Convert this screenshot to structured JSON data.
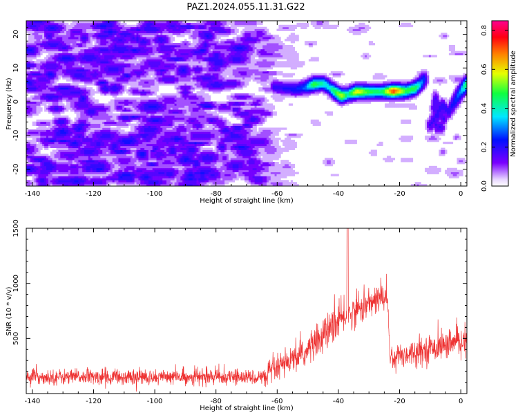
{
  "page": {
    "title": "PAZ1.2024.055.11.31.G22"
  },
  "chart_data": [
    {
      "type": "heatmap",
      "xlabel": "Height of straight line (km)",
      "ylabel": "Frequency (Hz)",
      "xlim": [
        -142,
        2
      ],
      "ylim": [
        -25,
        24
      ],
      "xticks": [
        -140,
        -120,
        -100,
        -80,
        -60,
        -40,
        -20,
        0
      ],
      "yticks": [
        20,
        10,
        0,
        -10,
        -20
      ],
      "grid": false,
      "colorbar": {
        "label": "Normalized spectral amplitude",
        "ticks": [
          0.0,
          0.2,
          0.4,
          0.6,
          0.8
        ],
        "range": [
          0.0,
          0.85
        ],
        "colormap": "gist_rainbow_r (white at 0, violet, blue, cyan, green, yellow, orange, red, magenta at max)"
      },
      "features": {
        "noise_region_x": [
          -142,
          -60
        ],
        "noise_amplitude_typical": 0.1,
        "main_ridge": {
          "x": [
            -61,
            -57,
            -54,
            -51,
            -48,
            -45,
            -43,
            -41,
            -39,
            -37,
            -34,
            -30,
            -26,
            -22,
            -18,
            -15,
            -13,
            -12
          ],
          "freq": [
            4.5,
            4.0,
            3.8,
            4.2,
            5.2,
            5.5,
            4.3,
            3.0,
            1.8,
            2.2,
            3.0,
            3.0,
            3.0,
            3.2,
            3.2,
            4.0,
            5.5,
            7.0
          ],
          "amp": [
            0.2,
            0.22,
            0.25,
            0.3,
            0.55,
            0.45,
            0.4,
            0.55,
            0.65,
            0.45,
            0.7,
            0.55,
            0.5,
            0.85,
            0.55,
            0.55,
            0.35,
            0.25
          ]
        },
        "second_ridge": {
          "x": [
            -10,
            -8,
            -6,
            -4,
            -2,
            0,
            2
          ],
          "freq": [
            -7.0,
            -4.0,
            -1.0,
            -3.0,
            0.0,
            3.0,
            5.5
          ],
          "amp": [
            0.18,
            0.18,
            0.2,
            0.2,
            0.25,
            0.35,
            0.55
          ]
        }
      }
    },
    {
      "type": "line",
      "xlabel": "Height of straight line (km)",
      "ylabel": "SNR (10 * v/v)",
      "xlim": [
        -142,
        2
      ],
      "ylim": [
        0,
        1500
      ],
      "xticks": [
        -140,
        -120,
        -100,
        -80,
        -60,
        -40,
        -20,
        0
      ],
      "yticks": [
        500,
        1000,
        1500
      ],
      "grid": false,
      "color": "#ee3333",
      "segments": [
        {
          "x": [
            -142,
            -63
          ],
          "mean": 150,
          "spread": 70
        },
        {
          "x": [
            -63,
            -50
          ],
          "mean": [
            180,
            380
          ],
          "spread": 120
        },
        {
          "x": [
            -50,
            -38
          ],
          "mean": [
            400,
            700
          ],
          "spread": 160
        },
        {
          "x": [
            -38,
            -24
          ],
          "mean": [
            700,
            900
          ],
          "spread": 140
        },
        {
          "x": [
            -24,
            -23
          ],
          "mean": [
            900,
            250
          ],
          "spread": 60
        },
        {
          "x": [
            -23,
            2
          ],
          "mean": [
            330,
            480
          ],
          "spread": 120
        }
      ],
      "spike": {
        "x": -37,
        "y": 1500
      }
    }
  ]
}
